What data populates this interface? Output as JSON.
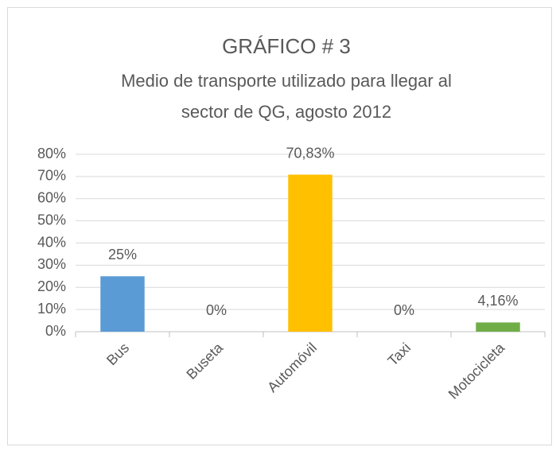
{
  "chart_data": {
    "type": "bar",
    "title": "GRÁFICO # 3",
    "subtitle": [
      "Medio de transporte utilizado para llegar al",
      "sector de QG, agosto 2012"
    ],
    "categories": [
      "Bus",
      "Buseta",
      "Automóvil",
      "Taxi",
      "Motocicleta"
    ],
    "values": [
      25,
      0,
      70.83,
      0,
      4.16
    ],
    "value_labels": [
      "25%",
      "0%",
      "70,83%",
      "0%",
      "4,16%"
    ],
    "colors": [
      "#5b9bd5",
      "#a5a5a5",
      "#ffc000",
      "#4472c4",
      "#70ad47"
    ],
    "ylim": [
      0,
      80
    ],
    "yticks": [
      {
        "value": 0,
        "label": "0%"
      },
      {
        "value": 10,
        "label": "10%"
      },
      {
        "value": 20,
        "label": "20%"
      },
      {
        "value": 30,
        "label": "30%"
      },
      {
        "value": 40,
        "label": "40%"
      },
      {
        "value": 50,
        "label": "50%"
      },
      {
        "value": 60,
        "label": "60%"
      },
      {
        "value": 70,
        "label": "70%"
      },
      {
        "value": 80,
        "label": "80%"
      }
    ],
    "grid": true
  }
}
